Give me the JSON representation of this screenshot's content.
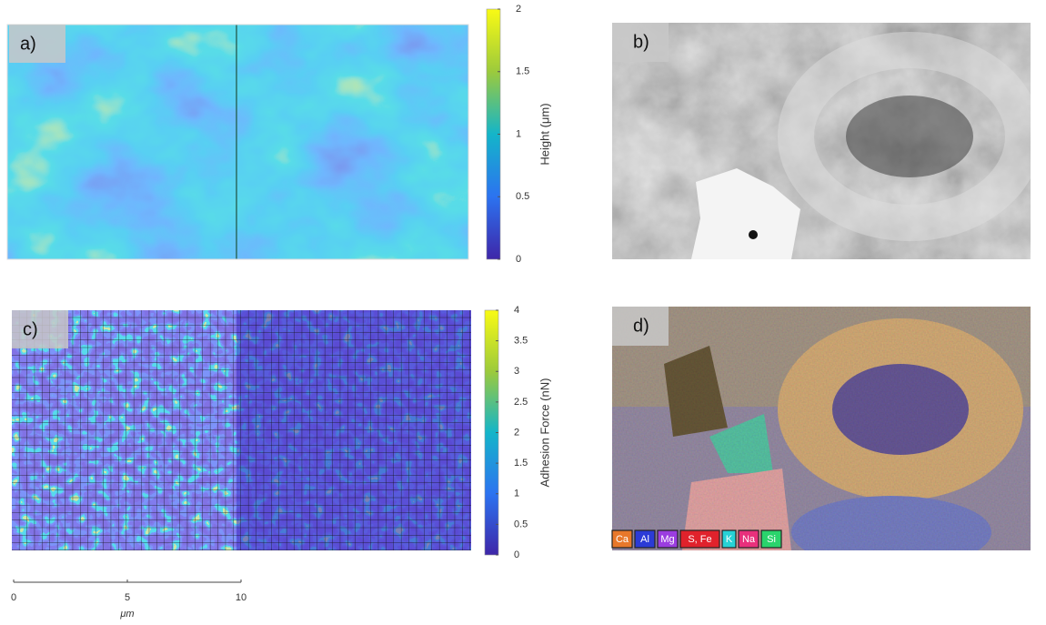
{
  "panels": [
    {
      "label": "a)"
    },
    {
      "label": "b)"
    },
    {
      "label": "c)"
    },
    {
      "label": "d)"
    }
  ],
  "colorbars": [
    {
      "label": "Height (μm)",
      "lim": [
        0,
        2
      ],
      "ticks": [
        0,
        0.5,
        1,
        1.5,
        2
      ]
    },
    {
      "label": "Adhesion Force (nN)",
      "lim": [
        0,
        4
      ],
      "ticks": [
        0,
        0.5,
        1,
        1.5,
        2,
        2.5,
        3,
        3.5,
        4
      ]
    }
  ],
  "scale_bar": {
    "lim": [
      0,
      10
    ],
    "ticks": [
      0,
      5,
      10
    ],
    "unit": "μm"
  },
  "legend": [
    {
      "name": "Ca",
      "color": "#e8782a"
    },
    {
      "name": "Al",
      "color": "#2b3bd6"
    },
    {
      "name": "Mg",
      "color": "#9b3de0"
    },
    {
      "name": "S, Fe",
      "color": "#e0222c"
    },
    {
      "name": "K",
      "color": "#27d2d6"
    },
    {
      "name": "Na",
      "color": "#e8307c"
    },
    {
      "name": "Si",
      "color": "#2ad46c"
    }
  ]
}
